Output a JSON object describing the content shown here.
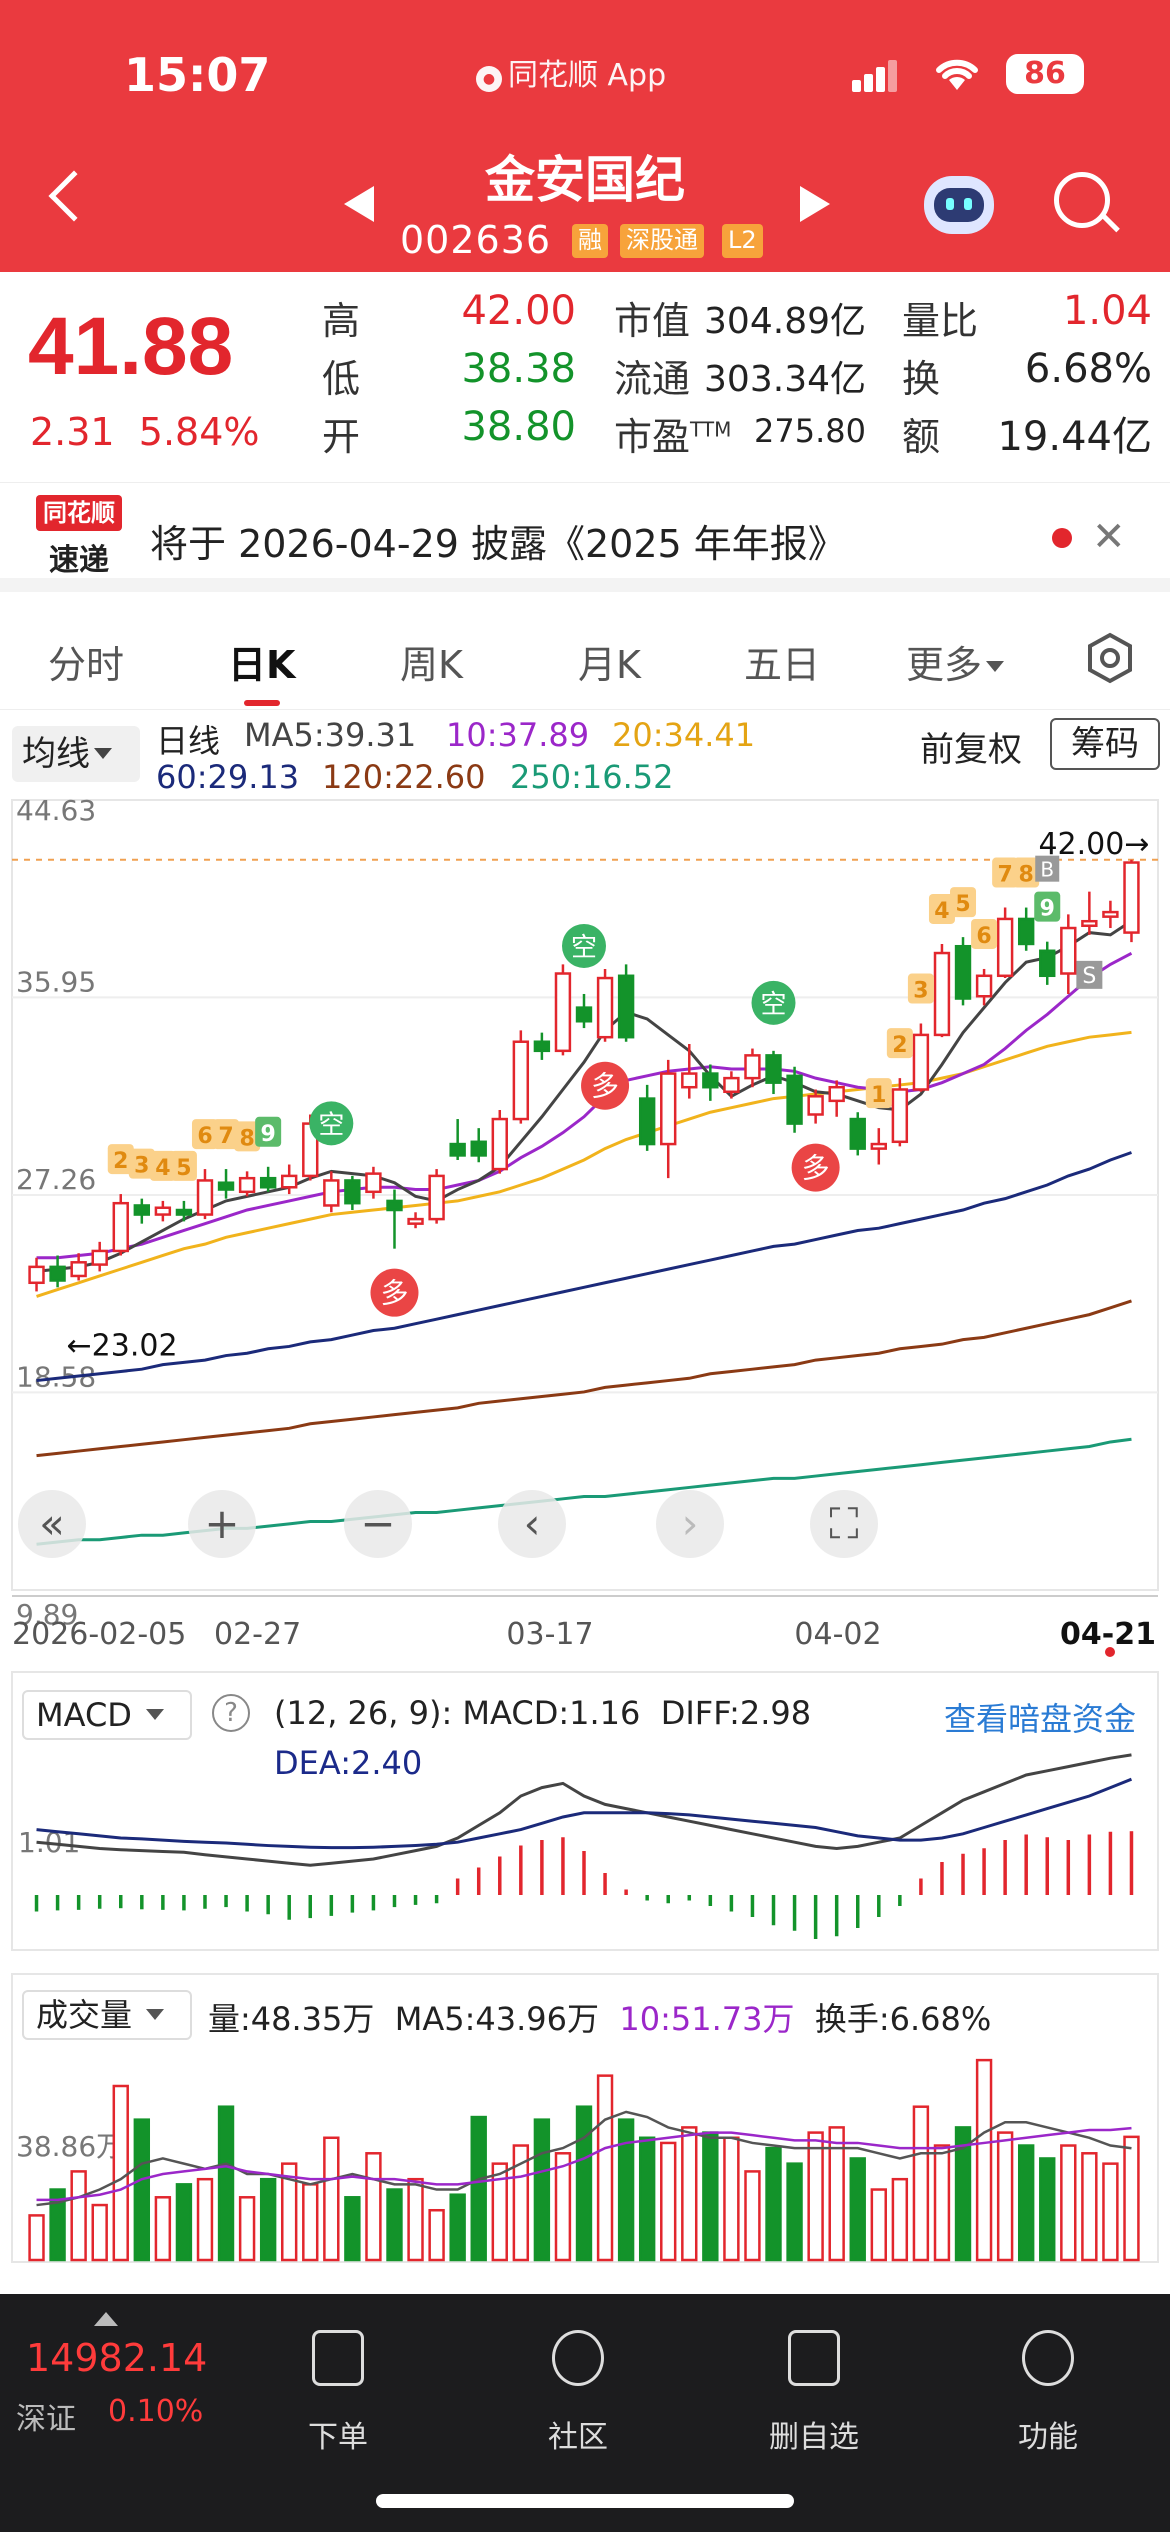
{
  "status_bar": {
    "time": "15:07",
    "app": "同花顺 App",
    "battery": "86"
  },
  "header": {
    "name": "金安国纪",
    "code": "002636",
    "tags": [
      "融",
      "深股通",
      "L2"
    ]
  },
  "quote": {
    "price": "41.88",
    "change": "2.31",
    "change_pct": "5.84%",
    "high_label": "高",
    "high": "42.00",
    "low_label": "低",
    "low": "38.38",
    "open_label": "开",
    "open": "38.80",
    "mcap_label": "市值",
    "mcap": "304.89亿",
    "float_label": "流通",
    "float": "303.34亿",
    "pe_label": "市盈",
    "pe_sup": "TTM",
    "pe": "275.80",
    "vr_label": "量比",
    "vr": "1.04",
    "turn_label": "换",
    "turn": "6.68%",
    "amt_label": "额",
    "amt": "19.44亿"
  },
  "notice": {
    "logo_top": "同花顺",
    "logo_bottom": "速递",
    "text": "将于 2026-04-29 披露《2025 年年报》"
  },
  "tabs": [
    {
      "label": "分时"
    },
    {
      "label": "日K"
    },
    {
      "label": "周K"
    },
    {
      "label": "月K"
    },
    {
      "label": "五日"
    },
    {
      "label": "更多"
    }
  ],
  "ma": {
    "button": "均线",
    "period": "日线",
    "ma5": "MA5:39.31",
    "ma10": "10:37.89",
    "ma20": "20:34.41",
    "ma60": "60:29.13",
    "ma120": "120:22.60",
    "ma250": "250:16.52",
    "adjust": "前复权",
    "chip": "筹码"
  },
  "colors": {
    "up": "#e2262d",
    "down": "#13932a",
    "ma5": "#444444",
    "ma10": "#9b27c9",
    "ma20": "#f1b31c",
    "ma60": "#1b2a7a",
    "ma120": "#8b3a14",
    "ma250": "#1a9a76"
  },
  "chart_data": {
    "type": "candlestick",
    "price_axis": [
      "44.63",
      "35.95",
      "27.26",
      "18.58",
      "9.89"
    ],
    "x_labels": [
      "2026-02-05",
      "02-27",
      "03-17",
      "04-02",
      "04-21"
    ],
    "high_marker": "42.00→",
    "low_marker": "←23.02",
    "candles": [
      {
        "o": 23.4,
        "c": 24.1,
        "h": 24.5,
        "l": 23.02
      },
      {
        "o": 24.1,
        "c": 23.5,
        "h": 24.6,
        "l": 23.2
      },
      {
        "o": 23.7,
        "c": 24.3,
        "h": 24.7,
        "l": 23.5
      },
      {
        "o": 24.2,
        "c": 24.8,
        "h": 25.2,
        "l": 23.9
      },
      {
        "o": 24.8,
        "c": 26.9,
        "h": 27.3,
        "l": 24.6
      },
      {
        "o": 26.8,
        "c": 26.4,
        "h": 27.1,
        "l": 26.0
      },
      {
        "o": 26.4,
        "c": 26.7,
        "h": 27.0,
        "l": 26.1
      },
      {
        "o": 26.6,
        "c": 26.4,
        "h": 27.0,
        "l": 26.1
      },
      {
        "o": 26.4,
        "c": 27.9,
        "h": 28.4,
        "l": 26.2
      },
      {
        "o": 27.8,
        "c": 27.5,
        "h": 28.4,
        "l": 27.1
      },
      {
        "o": 27.4,
        "c": 28.0,
        "h": 28.3,
        "l": 27.2
      },
      {
        "o": 28.0,
        "c": 27.6,
        "h": 28.5,
        "l": 27.4
      },
      {
        "o": 27.6,
        "c": 28.1,
        "h": 28.6,
        "l": 27.3
      },
      {
        "o": 28.1,
        "c": 30.4,
        "h": 30.8,
        "l": 27.9
      },
      {
        "o": 26.8,
        "c": 27.9,
        "h": 28.3,
        "l": 26.5
      },
      {
        "o": 27.9,
        "c": 26.9,
        "h": 28.1,
        "l": 26.6
      },
      {
        "o": 27.4,
        "c": 28.2,
        "h": 28.5,
        "l": 27.1
      },
      {
        "o": 27.0,
        "c": 26.6,
        "h": 27.5,
        "l": 24.9
      },
      {
        "o": 26.0,
        "c": 26.2,
        "h": 26.5,
        "l": 25.8
      },
      {
        "o": 26.2,
        "c": 28.1,
        "h": 28.4,
        "l": 26.0
      },
      {
        "o": 29.5,
        "c": 29.0,
        "h": 30.6,
        "l": 28.8
      },
      {
        "o": 29.6,
        "c": 29.0,
        "h": 30.2,
        "l": 28.7
      },
      {
        "o": 28.4,
        "c": 30.6,
        "h": 31.0,
        "l": 28.2
      },
      {
        "o": 30.6,
        "c": 34.0,
        "h": 34.5,
        "l": 30.4
      },
      {
        "o": 34.0,
        "c": 33.6,
        "h": 34.4,
        "l": 33.2
      },
      {
        "o": 33.6,
        "c": 37.0,
        "h": 37.4,
        "l": 33.4
      },
      {
        "o": 35.5,
        "c": 34.9,
        "h": 36.1,
        "l": 34.6
      },
      {
        "o": 34.2,
        "c": 36.8,
        "h": 37.2,
        "l": 34.0
      },
      {
        "o": 36.9,
        "c": 34.2,
        "h": 37.4,
        "l": 34.0
      },
      {
        "o": 31.5,
        "c": 29.5,
        "h": 32.1,
        "l": 29.2
      },
      {
        "o": 29.5,
        "c": 32.6,
        "h": 33.2,
        "l": 28.0
      },
      {
        "o": 32.0,
        "c": 32.6,
        "h": 33.9,
        "l": 31.5
      },
      {
        "o": 32.6,
        "c": 32.0,
        "h": 33.0,
        "l": 31.4
      },
      {
        "o": 31.8,
        "c": 32.4,
        "h": 32.7,
        "l": 31.5
      },
      {
        "o": 32.4,
        "c": 33.4,
        "h": 33.7,
        "l": 32.0
      },
      {
        "o": 33.4,
        "c": 32.2,
        "h": 33.6,
        "l": 31.7
      },
      {
        "o": 32.5,
        "c": 30.4,
        "h": 32.9,
        "l": 30.0
      },
      {
        "o": 30.8,
        "c": 31.6,
        "h": 31.9,
        "l": 30.4
      },
      {
        "o": 31.4,
        "c": 32.0,
        "h": 32.3,
        "l": 30.7
      },
      {
        "o": 30.6,
        "c": 29.3,
        "h": 30.9,
        "l": 29.0
      },
      {
        "o": 29.3,
        "c": 29.5,
        "h": 30.2,
        "l": 28.6
      },
      {
        "o": 29.6,
        "c": 31.9,
        "h": 32.4,
        "l": 29.4
      },
      {
        "o": 31.9,
        "c": 34.3,
        "h": 34.8,
        "l": 31.8
      },
      {
        "o": 34.3,
        "c": 37.9,
        "h": 38.3,
        "l": 34.2
      },
      {
        "o": 38.2,
        "c": 35.9,
        "h": 38.6,
        "l": 35.6
      },
      {
        "o": 36.0,
        "c": 36.9,
        "h": 37.2,
        "l": 35.6
      },
      {
        "o": 36.9,
        "c": 39.4,
        "h": 39.9,
        "l": 36.8
      },
      {
        "o": 39.4,
        "c": 38.3,
        "h": 39.9,
        "l": 38.0
      },
      {
        "o": 38.0,
        "c": 36.9,
        "h": 38.4,
        "l": 36.5
      },
      {
        "o": 37.0,
        "c": 39.0,
        "h": 39.6,
        "l": 36.1
      },
      {
        "o": 39.1,
        "c": 39.3,
        "h": 40.6,
        "l": 38.7
      },
      {
        "o": 39.5,
        "c": 39.7,
        "h": 40.2,
        "l": 39.0
      },
      {
        "o": 38.8,
        "c": 41.88,
        "h": 42.0,
        "l": 38.38
      }
    ],
    "ma5": [
      23.9,
      24.0,
      24.1,
      24.3,
      24.7,
      25.2,
      25.7,
      26.2,
      26.6,
      27.0,
      27.2,
      27.4,
      27.6,
      28.0,
      28.3,
      28.2,
      28.1,
      27.8,
      27.2,
      27.0,
      27.5,
      27.9,
      28.5,
      29.6,
      30.7,
      31.9,
      33.1,
      34.5,
      35.3,
      35.0,
      34.3,
      33.6,
      32.5,
      31.6,
      32.1,
      32.5,
      32.2,
      31.8,
      31.7,
      31.4,
      31.1,
      31.0,
      31.7,
      33.0,
      34.4,
      35.5,
      36.6,
      37.5,
      37.7,
      38.2,
      38.8,
      38.7,
      39.31
    ],
    "ma10": [
      24.5,
      24.5,
      24.6,
      24.7,
      24.9,
      25.1,
      25.4,
      25.7,
      26.0,
      26.3,
      26.6,
      26.8,
      27.0,
      27.2,
      27.4,
      27.5,
      27.6,
      27.6,
      27.5,
      27.5,
      27.7,
      27.9,
      28.3,
      28.9,
      29.4,
      30.0,
      30.7,
      31.6,
      32.3,
      32.5,
      32.7,
      32.8,
      32.9,
      32.8,
      32.8,
      32.8,
      32.7,
      32.4,
      32.2,
      32.0,
      31.9,
      31.8,
      31.9,
      32.2,
      32.6,
      33.0,
      33.7,
      34.5,
      35.2,
      36.0,
      36.8,
      37.4,
      37.89
    ],
    "ma20": [
      22.8,
      23.1,
      23.4,
      23.7,
      24.0,
      24.3,
      24.6,
      24.9,
      25.1,
      25.4,
      25.6,
      25.8,
      26.0,
      26.2,
      26.4,
      26.5,
      26.6,
      26.7,
      26.8,
      26.9,
      27.0,
      27.2,
      27.4,
      27.7,
      28.0,
      28.4,
      28.8,
      29.3,
      29.7,
      30.0,
      30.3,
      30.6,
      30.9,
      31.1,
      31.3,
      31.5,
      31.6,
      31.7,
      31.8,
      31.9,
      32.0,
      32.1,
      32.2,
      32.4,
      32.6,
      32.9,
      33.2,
      33.5,
      33.8,
      34.0,
      34.2,
      34.3,
      34.41
    ],
    "ma60": [
      19.1,
      19.2,
      19.3,
      19.4,
      19.5,
      19.6,
      19.8,
      19.9,
      20.0,
      20.2,
      20.3,
      20.5,
      20.6,
      20.8,
      20.9,
      21.1,
      21.3,
      21.4,
      21.6,
      21.8,
      22.0,
      22.2,
      22.4,
      22.6,
      22.8,
      23.0,
      23.2,
      23.4,
      23.6,
      23.8,
      24.0,
      24.2,
      24.4,
      24.6,
      24.8,
      25.0,
      25.1,
      25.3,
      25.5,
      25.7,
      25.8,
      26.0,
      26.2,
      26.4,
      26.6,
      26.9,
      27.1,
      27.4,
      27.7,
      28.1,
      28.4,
      28.8,
      29.13
    ],
    "ma120": [
      15.8,
      15.9,
      16.0,
      16.1,
      16.2,
      16.3,
      16.4,
      16.5,
      16.6,
      16.7,
      16.8,
      16.9,
      17.0,
      17.2,
      17.3,
      17.4,
      17.5,
      17.6,
      17.7,
      17.8,
      17.9,
      18.1,
      18.2,
      18.3,
      18.4,
      18.5,
      18.6,
      18.8,
      18.9,
      19.0,
      19.1,
      19.2,
      19.4,
      19.5,
      19.6,
      19.7,
      19.8,
      20.0,
      20.1,
      20.2,
      20.3,
      20.5,
      20.6,
      20.7,
      20.9,
      21.0,
      21.2,
      21.4,
      21.6,
      21.8,
      22.0,
      22.3,
      22.6
    ],
    "ma250": [
      11.9,
      12.0,
      12.1,
      12.1,
      12.2,
      12.3,
      12.3,
      12.4,
      12.5,
      12.6,
      12.6,
      12.7,
      12.8,
      12.9,
      12.9,
      13.0,
      13.1,
      13.2,
      13.3,
      13.3,
      13.4,
      13.5,
      13.6,
      13.7,
      13.8,
      13.9,
      14.0,
      14.0,
      14.1,
      14.2,
      14.3,
      14.4,
      14.5,
      14.6,
      14.7,
      14.8,
      14.8,
      14.9,
      15.0,
      15.1,
      15.2,
      15.3,
      15.4,
      15.5,
      15.6,
      15.7,
      15.8,
      15.9,
      16.0,
      16.1,
      16.2,
      16.4,
      16.52
    ],
    "signals": [
      {
        "i": 4,
        "text": "2",
        "kind": "count"
      },
      {
        "i": 5,
        "text": "3",
        "kind": "count"
      },
      {
        "i": 6,
        "text": "4",
        "kind": "count"
      },
      {
        "i": 7,
        "text": "5",
        "kind": "count"
      },
      {
        "i": 8,
        "text": "6",
        "kind": "count"
      },
      {
        "i": 9,
        "text": "7",
        "kind": "count"
      },
      {
        "i": 10,
        "text": "8",
        "kind": "count"
      },
      {
        "i": 11,
        "text": "9",
        "kind": "nine"
      },
      {
        "i": 14,
        "text": "空",
        "kind": "short"
      },
      {
        "i": 17,
        "text": "多",
        "kind": "long"
      },
      {
        "i": 26,
        "text": "空",
        "kind": "short"
      },
      {
        "i": 27,
        "text": "多",
        "kind": "long"
      },
      {
        "i": 35,
        "text": "空",
        "kind": "short"
      },
      {
        "i": 37,
        "text": "多",
        "kind": "long"
      },
      {
        "i": 40,
        "text": "1",
        "kind": "count"
      },
      {
        "i": 41,
        "text": "2",
        "kind": "count"
      },
      {
        "i": 42,
        "text": "3",
        "kind": "count"
      },
      {
        "i": 43,
        "text": "4",
        "kind": "count"
      },
      {
        "i": 44,
        "text": "5",
        "kind": "count"
      },
      {
        "i": 45,
        "text": "6",
        "kind": "count"
      },
      {
        "i": 46,
        "text": "7",
        "kind": "count"
      },
      {
        "i": 47,
        "text": "8",
        "kind": "count"
      },
      {
        "i": 48,
        "text": "9",
        "kind": "nine"
      },
      {
        "i": 48,
        "text": "B",
        "kind": "buy"
      },
      {
        "i": 50,
        "text": "S",
        "kind": "sell"
      }
    ],
    "macd": {
      "axis_label": "1.01",
      "hist": [
        -0.3,
        -0.28,
        -0.27,
        -0.25,
        -0.24,
        -0.26,
        -0.27,
        -0.28,
        -0.25,
        -0.22,
        -0.3,
        -0.35,
        -0.45,
        -0.42,
        -0.38,
        -0.32,
        -0.28,
        -0.22,
        -0.18,
        -0.15,
        0.3,
        0.5,
        0.7,
        0.9,
        1.0,
        1.05,
        0.8,
        0.4,
        0.1,
        -0.1,
        -0.15,
        -0.1,
        -0.2,
        -0.3,
        -0.4,
        -0.55,
        -0.65,
        -0.8,
        -0.75,
        -0.6,
        -0.4,
        -0.2,
        0.3,
        0.6,
        0.75,
        0.85,
        1.0,
        1.1,
        1.05,
        1.0,
        1.1,
        1.15,
        1.16
      ],
      "diff": [
        0.9,
        0.85,
        0.8,
        0.75,
        0.72,
        0.7,
        0.68,
        0.66,
        0.6,
        0.55,
        0.5,
        0.45,
        0.4,
        0.35,
        0.4,
        0.45,
        0.5,
        0.6,
        0.7,
        0.8,
        1.0,
        1.3,
        1.6,
        2.0,
        2.2,
        2.3,
        2.0,
        1.8,
        1.7,
        1.6,
        1.5,
        1.4,
        1.3,
        1.2,
        1.1,
        1.0,
        0.9,
        0.8,
        0.75,
        0.8,
        0.9,
        1.0,
        1.3,
        1.6,
        1.9,
        2.1,
        2.3,
        2.5,
        2.6,
        2.7,
        2.8,
        2.9,
        2.98
      ],
      "dea": [
        1.2,
        1.15,
        1.1,
        1.05,
        1.0,
        0.98,
        0.95,
        0.92,
        0.9,
        0.88,
        0.85,
        0.82,
        0.8,
        0.78,
        0.77,
        0.77,
        0.78,
        0.8,
        0.82,
        0.85,
        0.9,
        1.0,
        1.1,
        1.2,
        1.35,
        1.5,
        1.6,
        1.6,
        1.6,
        1.6,
        1.58,
        1.55,
        1.5,
        1.45,
        1.4,
        1.35,
        1.3,
        1.25,
        1.15,
        1.05,
        1.0,
        0.95,
        0.95,
        1.0,
        1.1,
        1.25,
        1.4,
        1.55,
        1.7,
        1.85,
        2.0,
        2.2,
        2.4
      ]
    },
    "volume": {
      "axis_label": "38.86万",
      "values": [
        18,
        28,
        35,
        22,
        68,
        55,
        25,
        30,
        32,
        60,
        25,
        32,
        38,
        30,
        48,
        25,
        42,
        28,
        32,
        20,
        26,
        56,
        38,
        45,
        55,
        42,
        60,
        72,
        55,
        48,
        46,
        52,
        50,
        48,
        35,
        44,
        38,
        50,
        52,
        40,
        28,
        32,
        60,
        45,
        52,
        78,
        50,
        45,
        40,
        45,
        42,
        38,
        48.35
      ],
      "ma5": [
        22,
        23,
        25,
        28,
        32,
        38,
        40,
        38,
        36,
        38,
        34,
        34,
        32,
        30,
        32,
        34,
        32,
        30,
        30,
        28,
        28,
        32,
        34,
        38,
        42,
        44,
        48,
        55,
        58,
        56,
        52,
        50,
        48,
        48,
        46,
        45,
        44,
        44,
        44,
        44,
        42,
        40,
        42,
        42,
        44,
        50,
        54,
        54,
        52,
        50,
        48,
        45,
        43.96
      ],
      "ma10": [
        24,
        24,
        25,
        26,
        28,
        32,
        34,
        35,
        36,
        37,
        35,
        34,
        33,
        32,
        32,
        33,
        32,
        32,
        31,
        30,
        30,
        31,
        32,
        33,
        35,
        37,
        40,
        44,
        46,
        47,
        48,
        49,
        50,
        50,
        49,
        48,
        47,
        47,
        46,
        46,
        45,
        44,
        44,
        44,
        45,
        46,
        47,
        48,
        49,
        50,
        51,
        51,
        51.73
      ]
    }
  },
  "macd": {
    "button": "MACD",
    "params": "(12, 26, 9):",
    "macd_val": "MACD:1.16",
    "diff_val": "DIFF:2.98",
    "dea_val": "DEA:2.40",
    "link": "查看暗盘资金"
  },
  "volume": {
    "button": "成交量",
    "vol": "量:48.35万",
    "ma5": "MA5:43.96万",
    "ma10": "10:51.73万",
    "turnover": "换手:6.68%"
  },
  "bottom": {
    "index_value": "14982.14",
    "index_name": "深证",
    "index_pct": "0.10%",
    "nav": [
      {
        "label": "下单"
      },
      {
        "label": "社区"
      },
      {
        "label": "删自选"
      },
      {
        "label": "功能"
      }
    ]
  }
}
